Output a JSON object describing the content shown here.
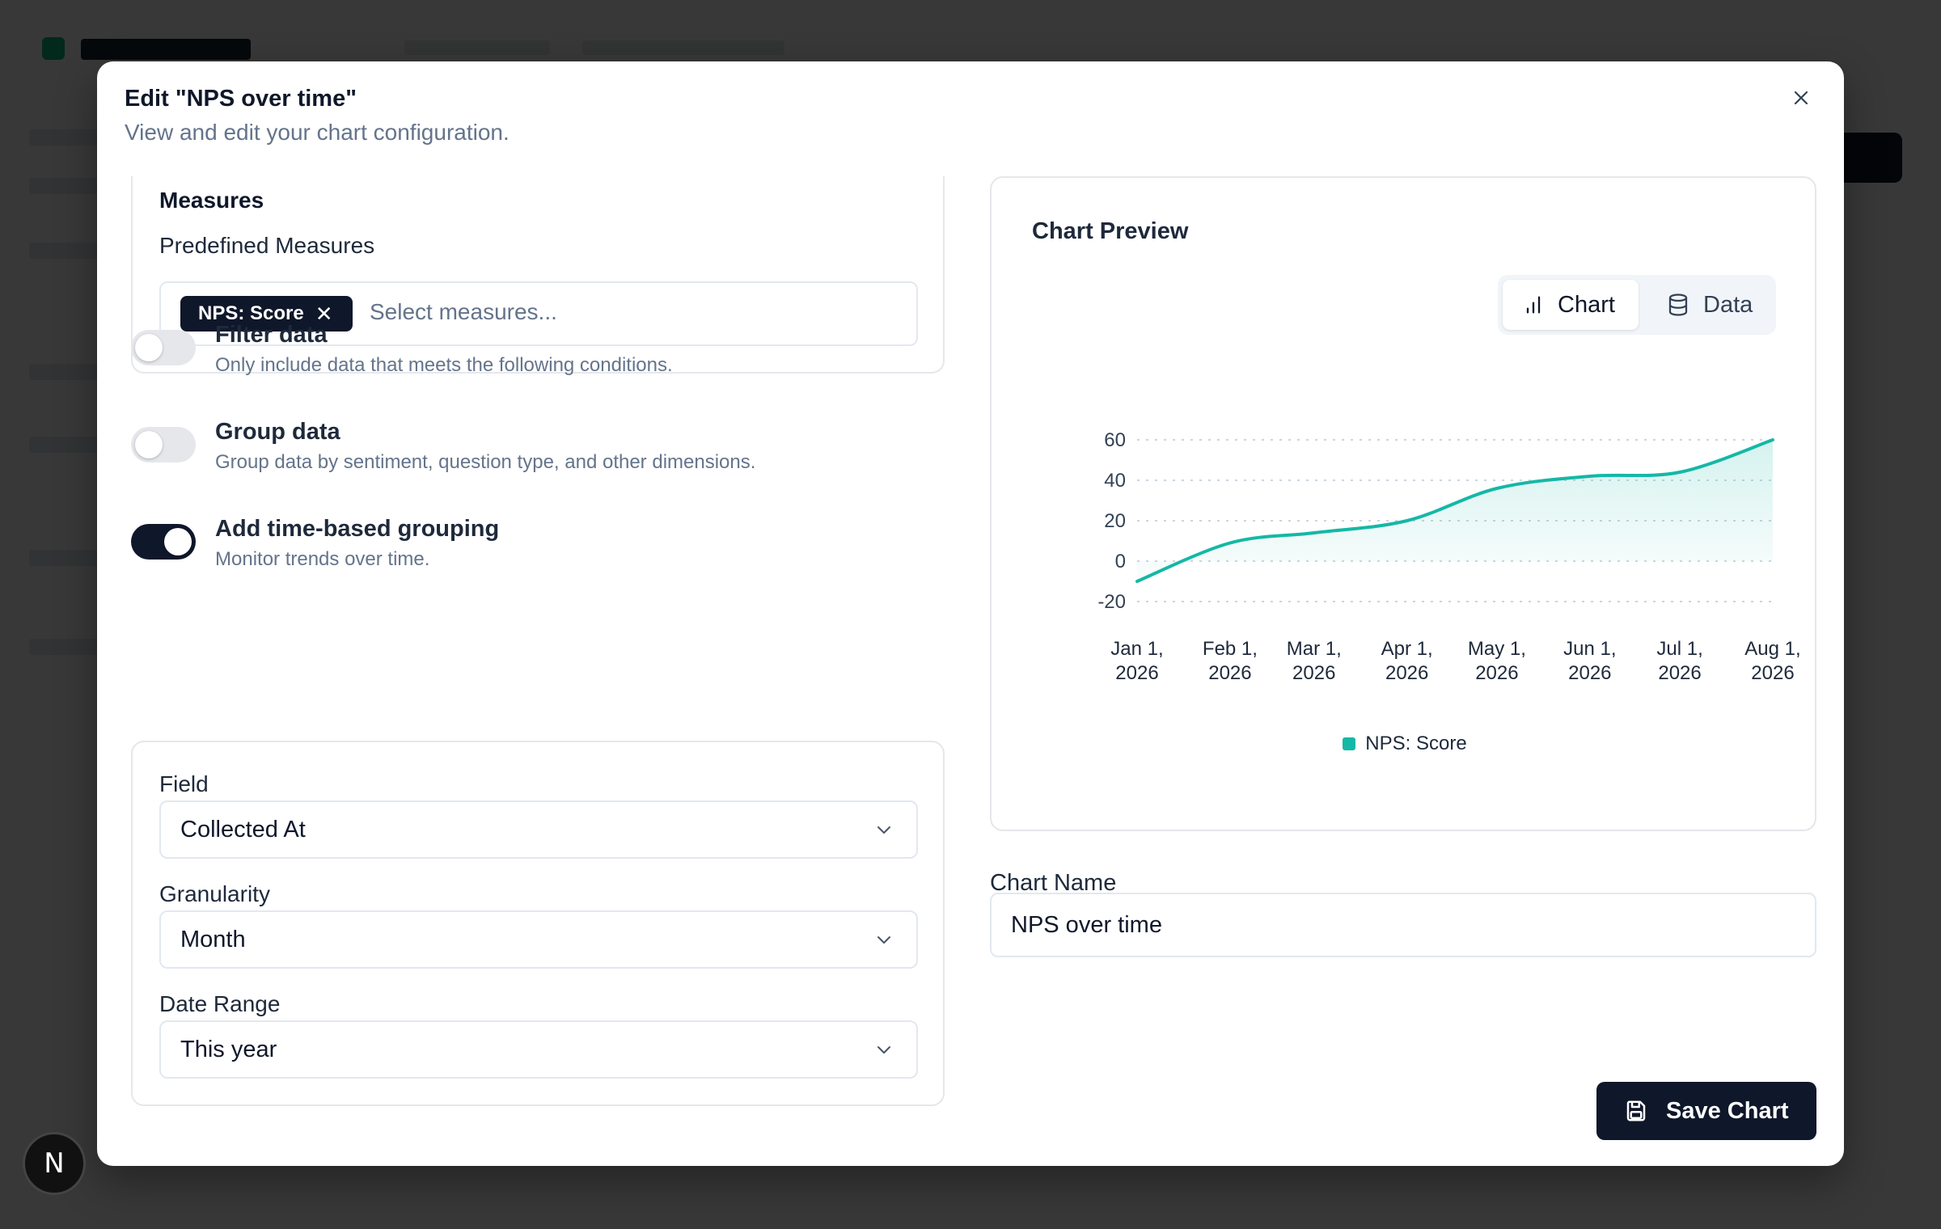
{
  "modal": {
    "title": "Edit \"NPS over time\"",
    "subtitle": "View and edit your chart configuration."
  },
  "measures": {
    "title": "Measures",
    "predefined_label": "Predefined Measures",
    "selected": [
      "NPS: Score"
    ],
    "placeholder": "Select measures..."
  },
  "toggles": [
    {
      "title": "Filter data",
      "description": "Only include data that meets the following conditions.",
      "on": false
    },
    {
      "title": "Group data",
      "description": "Group data by sentiment, question type, and other dimensions.",
      "on": false
    },
    {
      "title": "Add time-based grouping",
      "description": "Monitor trends over time.",
      "on": true
    }
  ],
  "time_grouping": {
    "field_label": "Field",
    "field_value": "Collected At",
    "granularity_label": "Granularity",
    "granularity_value": "Month",
    "date_range_label": "Date Range",
    "date_range_value": "This year"
  },
  "preview": {
    "title": "Chart Preview",
    "tabs": [
      {
        "label": "Chart",
        "icon": "bar-chart-icon",
        "active": true
      },
      {
        "label": "Data",
        "icon": "database-icon",
        "active": false
      }
    ]
  },
  "chart_data": {
    "type": "area",
    "x": [
      "Jan 1, 2026",
      "Feb 1, 2026",
      "Mar 1, 2026",
      "Apr 1, 2026",
      "May 1, 2026",
      "Jun 1, 2026",
      "Jul 1, 2026",
      "Aug 1, 2026"
    ],
    "x_labels": [
      [
        "Jan 1,",
        "2026"
      ],
      [
        "Feb 1,",
        "2026"
      ],
      [
        "Mar 1,",
        "2026"
      ],
      [
        "Apr 1,",
        "2026"
      ],
      [
        "May 1,",
        "2026"
      ],
      [
        "Jun 1,",
        "2026"
      ],
      [
        "Jul 1,",
        "2026"
      ],
      [
        "Aug 1,",
        "2026"
      ]
    ],
    "x_dates": [
      "2026-01-01",
      "2026-02-01",
      "2026-03-01",
      "2026-04-01",
      "2026-05-01",
      "2026-06-01",
      "2026-07-01",
      "2026-08-01"
    ],
    "series": [
      {
        "name": "NPS: Score",
        "values": [
          -10,
          9,
          14,
          20,
          36,
          42,
          44,
          60
        ],
        "color": "#14b8a6"
      }
    ],
    "yticks": [
      60,
      40,
      20,
      0,
      -20
    ],
    "ylim": [
      -20,
      60
    ],
    "grid": true,
    "legend": "bottom"
  },
  "chart_name": {
    "label": "Chart Name",
    "value": "NPS over time"
  },
  "save_button": {
    "label": "Save Chart",
    "icon": "save-icon"
  },
  "avatar": {
    "letter": "N"
  },
  "colors": {
    "primary": "#0f172a",
    "accent": "#14b8a6"
  }
}
